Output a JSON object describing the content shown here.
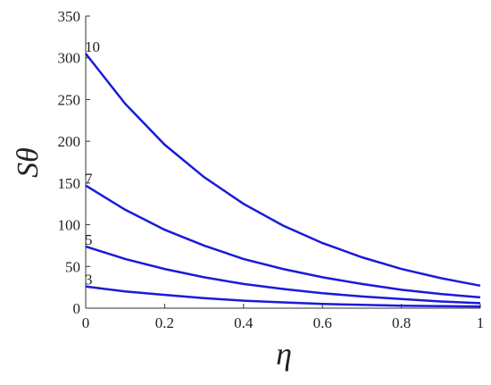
{
  "chart_data": {
    "type": "line",
    "xlabel": "η",
    "ylabel": "Sθ",
    "x": [
      0,
      0.1,
      0.2,
      0.3,
      0.4,
      0.5,
      0.6,
      0.7,
      0.8,
      0.9,
      1
    ],
    "series": [
      {
        "name": "10",
        "color": "#1a1adb",
        "values": [
          305,
          245,
          196,
          157,
          125,
          99,
          78,
          61,
          47,
          36,
          27
        ]
      },
      {
        "name": "7",
        "color": "#1a1adb",
        "values": [
          147,
          118,
          94,
          75,
          59,
          47,
          37,
          29,
          22,
          17,
          13
        ]
      },
      {
        "name": "5",
        "color": "#1a1adb",
        "values": [
          74,
          59,
          47,
          37,
          29,
          23,
          18,
          14,
          11,
          8,
          6
        ]
      },
      {
        "name": "3",
        "color": "#1a1adb",
        "values": [
          26,
          20,
          16,
          12,
          9,
          7,
          5,
          4,
          3,
          2.5,
          2
        ]
      }
    ],
    "xlim": [
      0,
      1
    ],
    "xticks": [
      0,
      0.2,
      0.4,
      0.6,
      0.8,
      1
    ],
    "ylim": [
      0,
      350
    ],
    "yticks": [
      0,
      50,
      100,
      150,
      200,
      250,
      300,
      350
    ]
  }
}
